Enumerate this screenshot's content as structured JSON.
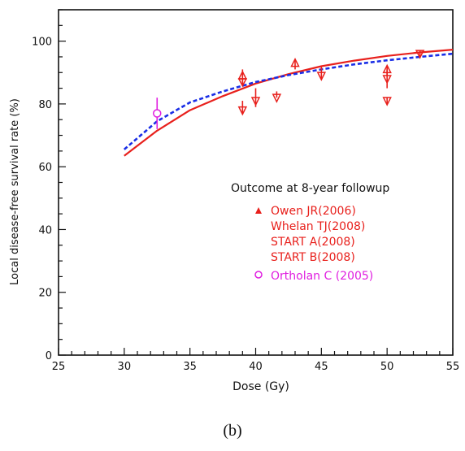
{
  "chart_data": {
    "type": "scatter",
    "title": "",
    "xlabel": "Dose (Gy)",
    "ylabel": "Local disease-free survival rate (%)",
    "xlim": [
      25,
      55
    ],
    "ylim": [
      0,
      110
    ],
    "x_ticks": [
      "25",
      "30",
      "35",
      "40",
      "45",
      "50",
      "55"
    ],
    "y_ticks": [
      "0",
      "20",
      "40",
      "60",
      "80",
      "100"
    ],
    "grid": false,
    "legend_title": "Outcome at 8-year followup",
    "legend_position": "center-right",
    "curves": [
      {
        "style": "solid",
        "color": "#e8201c",
        "x": [
          30,
          32.5,
          35,
          37.5,
          40,
          42.5,
          45,
          47.5,
          50,
          52.5,
          55
        ],
        "y": [
          63.5,
          71.5,
          78.0,
          82.5,
          86.5,
          89.5,
          92.0,
          93.8,
          95.3,
          96.4,
          97.3
        ]
      },
      {
        "style": "dashed",
        "color": "#1a2ee6",
        "x": [
          30,
          32.5,
          35,
          37.5,
          40,
          42.5,
          45,
          47.5,
          50,
          52.5,
          55
        ],
        "y": [
          65.5,
          74.5,
          80.5,
          84.0,
          87.0,
          89.2,
          91.0,
          92.6,
          93.9,
          95.0,
          96.0
        ]
      }
    ],
    "series": [
      {
        "name": "Owen JR(2006)",
        "marker": "triangle-up",
        "color": "#e8201c",
        "points": [
          {
            "x": 39,
            "y": 89,
            "err": [
              86,
              91
            ]
          },
          {
            "x": 43,
            "y": 93,
            "err": [
              91,
              94
            ]
          },
          {
            "x": 50,
            "y": 91,
            "err": [
              89,
              92
            ]
          }
        ]
      },
      {
        "name": "Whelan TJ(2008)",
        "marker": "triangle-down",
        "color": "#e8201c",
        "points": [
          {
            "x": 40,
            "y": 81,
            "err": [
              79,
              85
            ]
          },
          {
            "x": 45,
            "y": 89,
            "err": [
              88,
              92
            ]
          },
          {
            "x": 50,
            "y": 88,
            "err": [
              85,
              91
            ]
          }
        ]
      },
      {
        "name": "START A(2008)",
        "marker": "triangle-down",
        "color": "#e8201c",
        "points": [
          {
            "x": 39,
            "y": 78,
            "err": [
              77,
              81
            ]
          },
          {
            "x": 41.6,
            "y": 82,
            "err": [
              82,
              84
            ]
          },
          {
            "x": 52.5,
            "y": 96,
            "err": [
              95,
              97
            ]
          }
        ]
      },
      {
        "name": "START B(2008)",
        "marker": "triangle-down",
        "color": "#e8201c",
        "points": [
          {
            "x": 50,
            "y": 81,
            "err": [
              80,
              82
            ]
          },
          {
            "x": 39,
            "y": 87,
            "err": [
              86,
              88
            ]
          }
        ]
      },
      {
        "name": "Ortholan C (2005)",
        "marker": "circle-open",
        "color": "#e01ee0",
        "points": [
          {
            "x": 32.5,
            "y": 77,
            "err": [
              72,
              82
            ]
          }
        ]
      }
    ]
  },
  "caption": "(b)"
}
